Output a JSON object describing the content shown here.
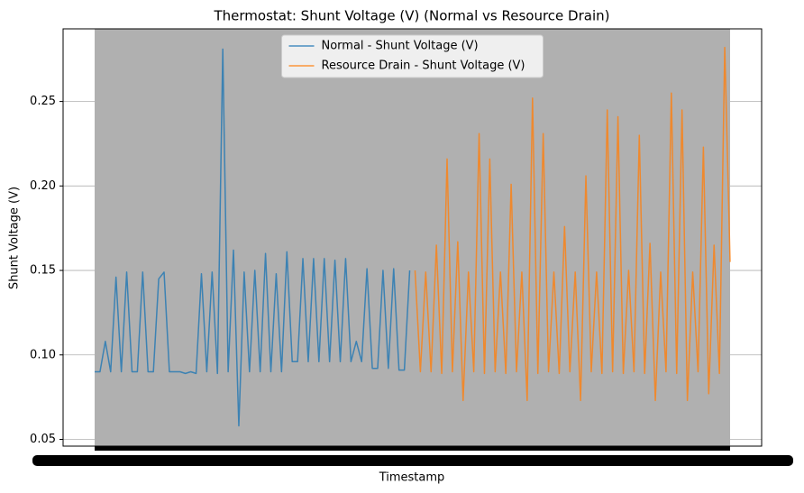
{
  "chart_data": {
    "type": "line",
    "title": "Thermostat: Shunt Voltage (V) (Normal vs Resource Drain)",
    "x_label": "Timestamp",
    "y_label": "Shunt Voltage (V)",
    "grid": true,
    "legend": "upper center",
    "ylim": [
      0.046,
      0.293
    ],
    "yticks": [
      0.05,
      {
        "value": 0.1,
        "label": "0.10"
      },
      0.15,
      {
        "value": 0.2,
        "label": "0.20"
      },
      0.25
    ],
    "categories": [
      null,
      null,
      null,
      null,
      null,
      null,
      null,
      null,
      null,
      null,
      null,
      null,
      null,
      null,
      null,
      null,
      null,
      null,
      null,
      null,
      null,
      null,
      null,
      null,
      null,
      null,
      null,
      null,
      null,
      null,
      null,
      null,
      null,
      null,
      null,
      null,
      null,
      null,
      null,
      null,
      null,
      null,
      null,
      null,
      null,
      null,
      null,
      null,
      null,
      null,
      null,
      null,
      null,
      null,
      null,
      null,
      null,
      null,
      null,
      null,
      null,
      null,
      null,
      null,
      null,
      null,
      null,
      null,
      null,
      null,
      null,
      null,
      null,
      null,
      null,
      null,
      null,
      null,
      null,
      null,
      null,
      null,
      null,
      null,
      null,
      null,
      null,
      null,
      null,
      null,
      null,
      null,
      null,
      null,
      null,
      null,
      null,
      null,
      null,
      null,
      null,
      null,
      null,
      null,
      null,
      null,
      null,
      null,
      null,
      null,
      null,
      null,
      null,
      null,
      null,
      null,
      null,
      null,
      null,
      null
    ],
    "series": [
      {
        "name": "Normal - Shunt Voltage (V)",
        "color": "#1f77b4",
        "values": [
          0.09,
          0.09,
          0.108,
          0.09,
          0.146,
          0.09,
          0.149,
          0.09,
          0.09,
          0.149,
          0.09,
          0.09,
          0.145,
          0.149,
          0.09,
          0.09,
          0.09,
          0.089,
          0.09,
          0.089,
          0.148,
          0.09,
          0.149,
          0.089,
          0.281,
          0.09,
          0.162,
          0.058,
          0.149,
          0.09,
          0.15,
          0.09,
          0.16,
          0.09,
          0.148,
          0.09,
          0.161,
          0.096,
          0.096,
          0.157,
          0.096,
          0.157,
          0.096,
          0.157,
          0.096,
          0.156,
          0.096,
          0.157,
          0.096,
          0.108,
          0.096,
          0.151,
          0.092,
          0.092,
          0.15,
          0.092,
          0.151,
          0.091,
          0.091,
          0.15,
          null,
          null,
          null,
          null,
          null,
          null,
          null,
          null,
          null,
          null,
          null,
          null,
          null,
          null,
          null,
          null,
          null,
          null,
          null,
          null,
          null,
          null,
          null,
          null,
          null,
          null,
          null,
          null,
          null,
          null,
          null,
          null,
          null,
          null,
          null,
          null,
          null,
          null,
          null,
          null,
          null,
          null,
          null,
          null,
          null,
          null,
          null,
          null,
          null,
          null,
          null,
          null,
          null,
          null,
          null,
          null,
          null,
          null,
          null,
          null
        ]
      },
      {
        "name": "Resource Drain - Shunt Voltage (V)",
        "color": "#ff7f0e",
        "values": [
          null,
          null,
          null,
          null,
          null,
          null,
          null,
          null,
          null,
          null,
          null,
          null,
          null,
          null,
          null,
          null,
          null,
          null,
          null,
          null,
          null,
          null,
          null,
          null,
          null,
          null,
          null,
          null,
          null,
          null,
          null,
          null,
          null,
          null,
          null,
          null,
          null,
          null,
          null,
          null,
          null,
          null,
          null,
          null,
          null,
          null,
          null,
          null,
          null,
          null,
          null,
          null,
          null,
          null,
          null,
          null,
          null,
          null,
          null,
          null,
          0.15,
          0.09,
          0.149,
          0.09,
          0.165,
          0.089,
          0.216,
          0.09,
          0.167,
          0.073,
          0.149,
          0.09,
          0.231,
          0.089,
          0.216,
          0.09,
          0.149,
          0.089,
          0.201,
          0.09,
          0.149,
          0.073,
          0.252,
          0.089,
          0.231,
          0.09,
          0.149,
          0.089,
          0.176,
          0.09,
          0.149,
          0.073,
          0.206,
          0.09,
          0.149,
          0.089,
          0.245,
          0.09,
          0.241,
          0.089,
          0.15,
          0.09,
          0.23,
          0.089,
          0.166,
          0.073,
          0.149,
          0.09,
          0.255,
          0.089,
          0.245,
          0.073,
          0.149,
          0.09,
          0.223,
          0.077,
          0.165,
          0.089,
          0.282,
          0.155
        ]
      }
    ]
  }
}
